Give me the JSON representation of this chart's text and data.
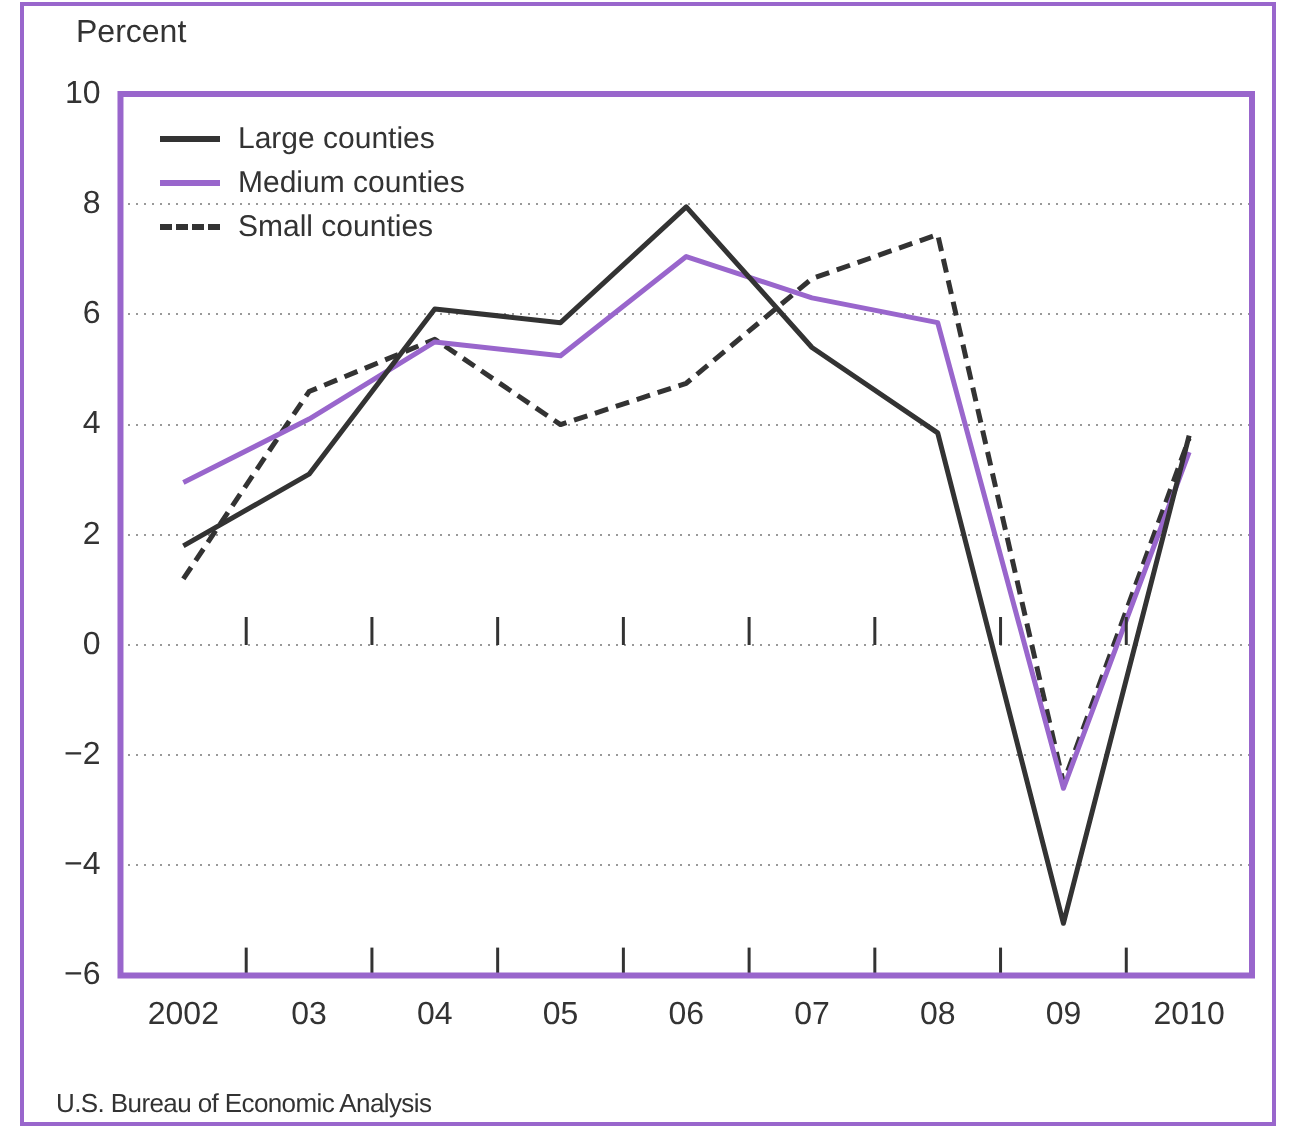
{
  "chart_data": {
    "type": "line",
    "ylabel": "Percent",
    "categories": [
      "2002",
      "03",
      "04",
      "05",
      "06",
      "07",
      "08",
      "09",
      "2010"
    ],
    "series": [
      {
        "name": "Large counties",
        "color": "#333333",
        "line_style": "solid",
        "values": [
          1.8,
          3.1,
          6.1,
          5.85,
          7.95,
          5.4,
          3.85,
          -5.05,
          3.8
        ]
      },
      {
        "name": "Medium counties",
        "color": "#9966cc",
        "line_style": "solid",
        "values": [
          2.95,
          4.1,
          5.5,
          5.25,
          7.05,
          6.3,
          5.85,
          -2.6,
          3.5
        ]
      },
      {
        "name": "Small counties",
        "color": "#333333",
        "line_style": "dashed",
        "values": [
          1.2,
          4.6,
          5.55,
          4.0,
          4.75,
          6.65,
          7.45,
          -2.5,
          3.75
        ]
      }
    ],
    "ylim": [
      -6,
      10
    ],
    "yticks": [
      -6,
      -4,
      -2,
      0,
      2,
      4,
      6,
      8,
      10
    ],
    "grid": "y",
    "legend": "top left",
    "marker": "none",
    "annotations": [
      "U.S. Bureau of Economic Analysis"
    ]
  }
}
